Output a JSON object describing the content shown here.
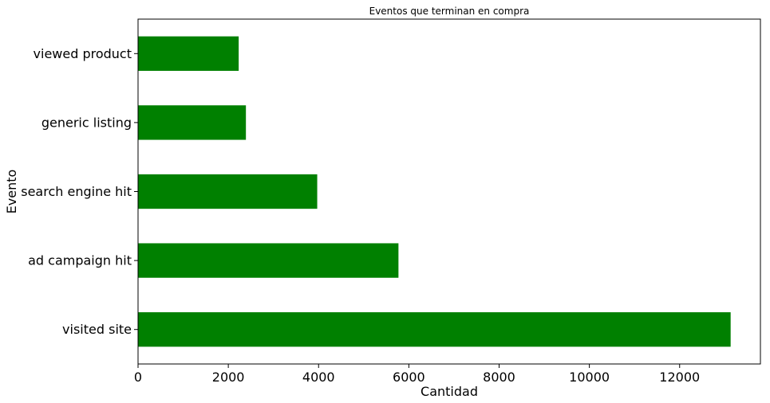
{
  "chart_data": {
    "type": "bar",
    "orientation": "horizontal",
    "title": "Eventos que terminan en compra",
    "xlabel": "Cantidad",
    "ylabel": "Evento",
    "categories": [
      "visited site",
      "ad campaign hit",
      "search engine hit",
      "generic listing",
      "viewed product"
    ],
    "values": [
      13130,
      5770,
      3970,
      2390,
      2230
    ],
    "xlim": [
      0,
      13790
    ],
    "xticks": [
      0,
      2000,
      4000,
      6000,
      8000,
      10000,
      12000
    ],
    "grid": false,
    "bar_color": "#008000"
  }
}
